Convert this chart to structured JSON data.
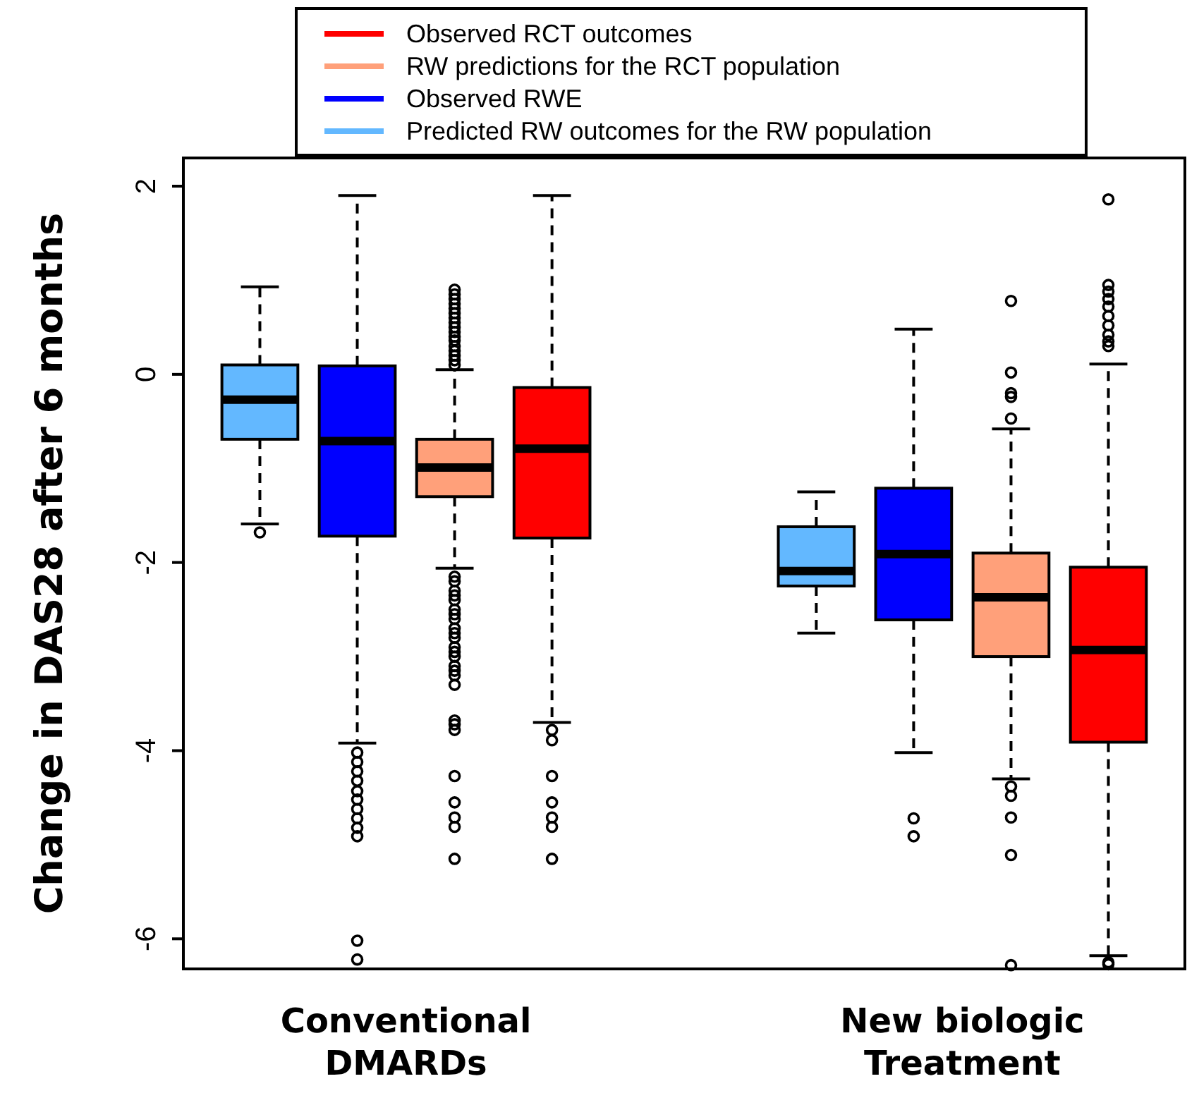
{
  "chart_data": {
    "type": "box",
    "ylabel": "Change in DAS28 after 6 months",
    "categories": [
      "Conventional DMARDs",
      "New biologic Treatment"
    ],
    "ylim": [
      -6.32,
      2.3
    ],
    "yticks": [
      2,
      0,
      -2,
      -4,
      -6
    ],
    "legend": "top",
    "grid": false,
    "series": [
      {
        "name": "Predicted RW outcomes for the RW population",
        "color": "#63b8ff",
        "boxes": [
          {
            "low": -1.59,
            "q1": -0.69,
            "median": -0.27,
            "q3": 0.1,
            "high": 0.93,
            "outliers": [
              -1.68
            ]
          },
          {
            "low": -2.75,
            "q1": -2.25,
            "median": -2.09,
            "q3": -1.62,
            "high": -1.25
          }
        ]
      },
      {
        "name": "Observed RWE",
        "color": "#0000ff",
        "boxes": [
          {
            "low": -3.92,
            "q1": -1.72,
            "median": -0.71,
            "q3": 0.09,
            "high": 1.9,
            "outliers": [
              -4.02,
              -4.12,
              -4.22,
              -4.32,
              -4.43,
              -4.52,
              -4.62,
              -4.72,
              -4.82,
              -4.91,
              -6.02,
              -6.22
            ]
          },
          {
            "low": -4.02,
            "q1": -2.61,
            "median": -1.91,
            "q3": -1.21,
            "high": 0.48,
            "outliers": [
              -4.72,
              -4.91
            ]
          }
        ]
      },
      {
        "name": "RW predictions for the RCT population",
        "color": "#ffa07a",
        "boxes": [
          {
            "low": -2.06,
            "q1": -1.3,
            "median": -0.99,
            "q3": -0.69,
            "high": 0.05,
            "outliers": [
              0.1,
              0.15,
              0.2,
              0.25,
              0.3,
              0.36,
              0.4,
              0.45,
              0.5,
              0.55,
              0.6,
              0.65,
              0.7,
              0.75,
              0.8,
              0.85,
              0.9,
              -2.15,
              -2.2,
              -2.3,
              -2.35,
              -2.4,
              -2.5,
              -2.55,
              -2.6,
              -2.7,
              -2.75,
              -2.8,
              -2.9,
              -2.95,
              -3.0,
              -3.1,
              -3.15,
              -3.2,
              -3.3,
              -3.68,
              -3.72,
              -3.78,
              -4.27,
              -4.55,
              -4.71,
              -4.81,
              -5.15
            ]
          },
          {
            "low": -4.3,
            "q1": -3.0,
            "median": -2.37,
            "q3": -1.9,
            "high": -0.58,
            "outliers": [
              -0.47,
              -0.24,
              -0.2,
              0.02,
              0.78,
              -4.38,
              -4.48,
              -4.71,
              -5.11,
              -6.28
            ]
          }
        ]
      },
      {
        "name": "Observed RCT outcomes",
        "color": "#ff0000",
        "boxes": [
          {
            "low": -3.7,
            "q1": -1.74,
            "median": -0.79,
            "q3": -0.14,
            "high": 1.9,
            "outliers": [
              -3.78,
              -3.89,
              -4.27,
              -4.55,
              -4.71,
              -4.81,
              -5.15
            ]
          },
          {
            "low": -6.18,
            "q1": -3.91,
            "median": -2.93,
            "q3": -2.05,
            "high": 0.11,
            "outliers": [
              0.3,
              0.35,
              0.42,
              0.52,
              0.62,
              0.72,
              0.8,
              0.88,
              0.95,
              1.86,
              -6.25,
              -6.27
            ]
          }
        ]
      }
    ]
  }
}
